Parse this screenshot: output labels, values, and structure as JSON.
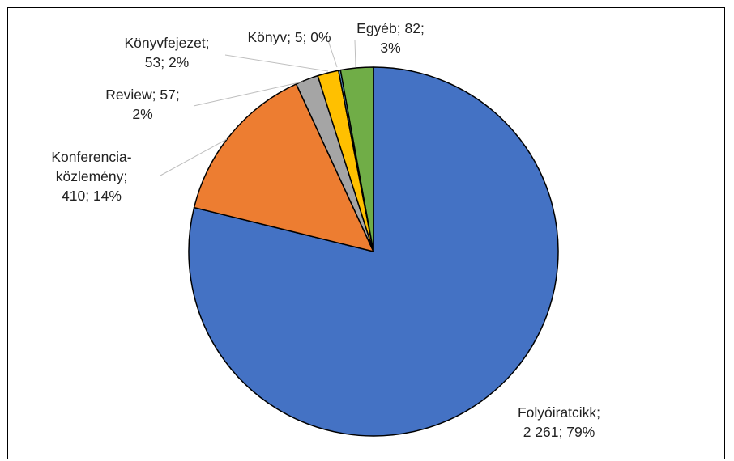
{
  "chart_data": {
    "type": "pie",
    "title": "",
    "start_angle_deg": 0,
    "direction": "clockwise",
    "slices": [
      {
        "label": "Folyóiratcikk",
        "value": 2261,
        "percent": "79%",
        "value_text": "2 261",
        "color": "#4472C4",
        "label_lines": [
          "Folyóiratcikk;",
          "2 261; 79%"
        ]
      },
      {
        "label": "Konferencia-közlemény",
        "value": 410,
        "percent": "14%",
        "value_text": "410",
        "color": "#ED7D31",
        "label_lines": [
          "Konferencia-",
          "közlemény;",
          "410; 14%"
        ]
      },
      {
        "label": "Review",
        "value": 57,
        "percent": "2%",
        "value_text": "57",
        "color": "#A5A5A5",
        "label_lines": [
          "Review; 57;",
          "2%"
        ]
      },
      {
        "label": "Könyvfejezet",
        "value": 53,
        "percent": "2%",
        "value_text": "53",
        "color": "#FFC000",
        "label_lines": [
          "Könyvfejezet;",
          "53; 2%"
        ]
      },
      {
        "label": "Könyv",
        "value": 5,
        "percent": "0%",
        "value_text": "5",
        "color": "#5B9BD5",
        "label_lines": [
          "Könyv; 5; 0%"
        ]
      },
      {
        "label": "Egyéb",
        "value": 82,
        "percent": "3%",
        "value_text": "82",
        "color": "#70AD47",
        "label_lines": [
          "Egyéb; 82;",
          "3%"
        ]
      }
    ]
  }
}
